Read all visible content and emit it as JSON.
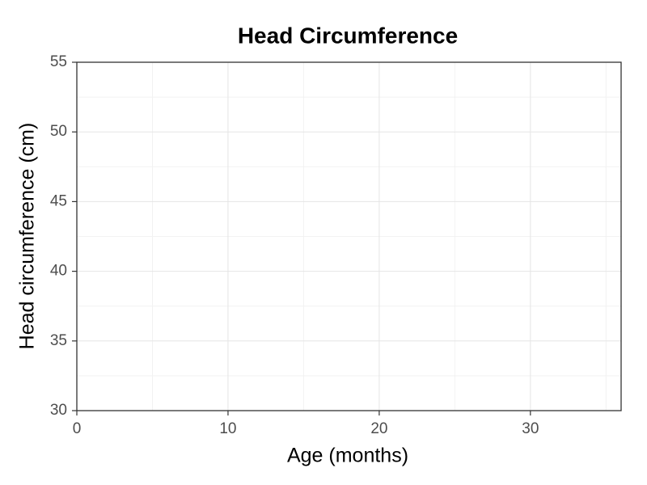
{
  "chart_data": {
    "type": "line",
    "title": "Head Circumference",
    "x_label": "Age (months)",
    "y_label": "Head circumference (cm)",
    "xlim": [
      0,
      36
    ],
    "xticks": [
      0,
      10,
      20,
      30
    ],
    "ylim": [
      30,
      55
    ],
    "yticks": [
      30,
      35,
      40,
      45,
      50,
      55
    ],
    "grid": true,
    "minor_grid": true
  }
}
